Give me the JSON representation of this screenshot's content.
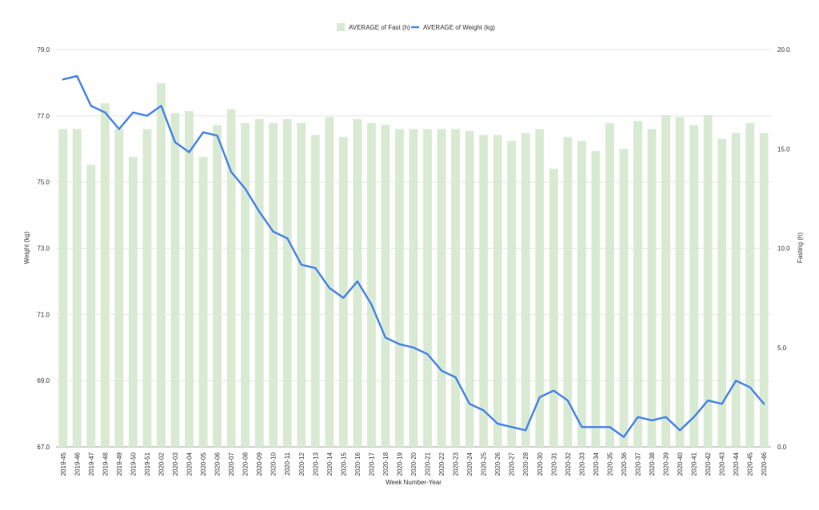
{
  "chart_data": {
    "type": "bar+line",
    "title": "",
    "xlabel": "Week Number-Year",
    "ylabel_left": "Weight (kg)",
    "ylabel_right": "Fasting (h)",
    "y_left_range": [
      67.0,
      79.0
    ],
    "y_left_ticks": [
      "67.0",
      "69.0",
      "71.0",
      "73.0",
      "75.0",
      "77.0",
      "79.0"
    ],
    "y_right_range": [
      0.0,
      20.0
    ],
    "y_right_ticks": [
      "0.0",
      "5.0",
      "10.0",
      "15.0",
      "20.0"
    ],
    "grid": true,
    "legend_position": "top",
    "categories": [
      "2019-45",
      "2019-46",
      "2019-47",
      "2019-48",
      "2019-49",
      "2019-50",
      "2019-51",
      "2020-02",
      "2020-03",
      "2020-04",
      "2020-05",
      "2020-06",
      "2020-07",
      "2020-08",
      "2020-09",
      "2020-10",
      "2020-11",
      "2020-12",
      "2020-13",
      "2020-14",
      "2020-15",
      "2020-16",
      "2020-17",
      "2020-18",
      "2020-19",
      "2020-20",
      "2020-21",
      "2020-22",
      "2020-23",
      "2020-24",
      "2020-25",
      "2020-26",
      "2020-27",
      "2020-28",
      "2020-30",
      "2020-31",
      "2020-32",
      "2020-33",
      "2020-34",
      "2020-35",
      "2020-36",
      "2020-37",
      "2020-38",
      "2020-39",
      "2020-40",
      "2020-41",
      "2020-42",
      "2020-43",
      "2020-44",
      "2020-45",
      "2020-46"
    ],
    "series": [
      {
        "name": "AVERAGE of Fast (h)",
        "kind": "bar",
        "axis": "right",
        "color": "#d9ead3",
        "values": [
          16.0,
          16.0,
          14.2,
          17.3,
          16.0,
          14.6,
          16.0,
          18.3,
          16.8,
          16.9,
          14.6,
          16.2,
          17.0,
          16.3,
          16.5,
          16.3,
          16.5,
          16.3,
          15.7,
          16.6,
          15.6,
          16.5,
          16.3,
          16.2,
          16.0,
          16.0,
          16.0,
          16.0,
          16.0,
          15.9,
          15.7,
          15.7,
          15.4,
          15.8,
          16.0,
          14.0,
          15.6,
          15.4,
          14.9,
          16.3,
          15.0,
          16.4,
          16.0,
          16.7,
          16.6,
          16.2,
          16.7,
          15.5,
          15.8,
          16.3,
          15.8
        ]
      },
      {
        "name": "AVERAGE of Weight (kg)",
        "kind": "line",
        "axis": "left",
        "color": "#4a86e8",
        "values": [
          78.1,
          78.2,
          77.3,
          77.1,
          76.6,
          77.1,
          77.0,
          77.3,
          76.2,
          75.9,
          76.5,
          76.4,
          75.3,
          74.8,
          74.1,
          73.5,
          73.3,
          72.5,
          72.4,
          71.8,
          71.5,
          72.0,
          71.3,
          70.3,
          70.1,
          70.0,
          69.8,
          69.3,
          69.1,
          68.3,
          68.1,
          67.7,
          67.6,
          67.5,
          68.5,
          68.7,
          68.4,
          67.6,
          67.6,
          67.6,
          67.3,
          67.9,
          67.8,
          67.9,
          67.5,
          67.9,
          68.4,
          68.3,
          69.0,
          68.8,
          68.3
        ]
      }
    ]
  }
}
